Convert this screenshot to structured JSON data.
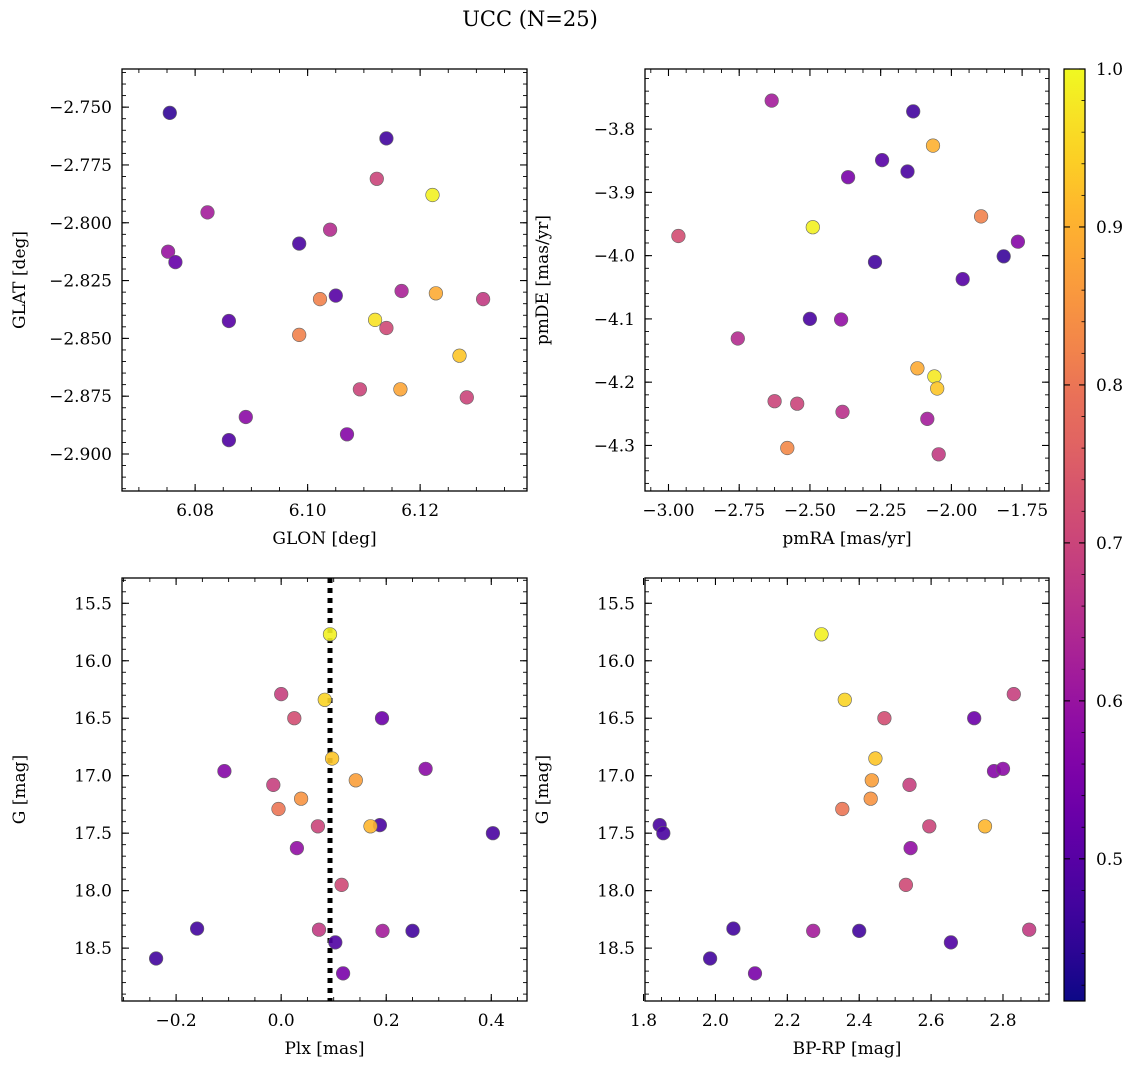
{
  "figure": {
    "title": "UCC (N=25)"
  },
  "chart_data": [
    {
      "type": "scatter",
      "panel": "top-left",
      "xlabel": "GLON [deg]",
      "ylabel": "GLAT [deg]",
      "xlim": [
        6.067,
        6.139
      ],
      "ylim": [
        -2.916,
        -2.7335
      ],
      "xticks": [
        6.08,
        6.1,
        6.12
      ],
      "xtick_labels": [
        "6.08",
        "6.10",
        "6.12"
      ],
      "yticks": [
        -2.75,
        -2.775,
        -2.8,
        -2.825,
        -2.85,
        -2.875,
        -2.9
      ],
      "ytick_labels": [
        "−2.750",
        "−2.775",
        "−2.800",
        "−2.825",
        "−2.850",
        "−2.875",
        "−2.900"
      ],
      "y_inverted": false,
      "points": [
        {
          "x": 6.0755,
          "y": -2.7525,
          "c": 0.45
        },
        {
          "x": 6.114,
          "y": -2.7635,
          "c": 0.47
        },
        {
          "x": 6.1123,
          "y": -2.781,
          "c": 0.7
        },
        {
          "x": 6.1222,
          "y": -2.788,
          "c": 0.99
        },
        {
          "x": 6.0822,
          "y": -2.7955,
          "c": 0.62
        },
        {
          "x": 6.104,
          "y": -2.803,
          "c": 0.65
        },
        {
          "x": 6.0985,
          "y": -2.809,
          "c": 0.48
        },
        {
          "x": 6.0752,
          "y": -2.8125,
          "c": 0.6
        },
        {
          "x": 6.0765,
          "y": -2.817,
          "c": 0.52
        },
        {
          "x": 6.1022,
          "y": -2.833,
          "c": 0.82
        },
        {
          "x": 6.105,
          "y": -2.8315,
          "c": 0.5
        },
        {
          "x": 6.1167,
          "y": -2.8295,
          "c": 0.63
        },
        {
          "x": 6.1228,
          "y": -2.8305,
          "c": 0.89
        },
        {
          "x": 6.1312,
          "y": -2.833,
          "c": 0.68
        },
        {
          "x": 6.086,
          "y": -2.8425,
          "c": 0.5
        },
        {
          "x": 6.112,
          "y": -2.842,
          "c": 0.97
        },
        {
          "x": 6.114,
          "y": -2.8455,
          "c": 0.71
        },
        {
          "x": 6.0985,
          "y": -2.8485,
          "c": 0.82
        },
        {
          "x": 6.127,
          "y": -2.8575,
          "c": 0.93
        },
        {
          "x": 6.1093,
          "y": -2.872,
          "c": 0.7
        },
        {
          "x": 6.1165,
          "y": -2.872,
          "c": 0.88
        },
        {
          "x": 6.1283,
          "y": -2.8755,
          "c": 0.7
        },
        {
          "x": 6.089,
          "y": -2.884,
          "c": 0.58
        },
        {
          "x": 6.086,
          "y": -2.894,
          "c": 0.49
        },
        {
          "x": 6.107,
          "y": -2.8915,
          "c": 0.57
        }
      ]
    },
    {
      "type": "scatter",
      "panel": "top-right",
      "xlabel": "pmRA [mas/yr]",
      "ylabel": "pmDE [mas/yr]",
      "xlim": [
        -3.083,
        -1.655
      ],
      "ylim": [
        -4.372,
        -3.705
      ],
      "xticks": [
        -3.0,
        -2.75,
        -2.5,
        -2.25,
        -2.0,
        -1.75
      ],
      "xtick_labels": [
        "−3.00",
        "−2.75",
        "−2.50",
        "−2.25",
        "−2.00",
        "−1.75"
      ],
      "yticks": [
        -3.8,
        -3.9,
        -4.0,
        -4.1,
        -4.2,
        -4.3
      ],
      "ytick_labels": [
        "−3.8",
        "−3.9",
        "−4.0",
        "−4.1",
        "−4.2",
        "−4.3"
      ],
      "y_inverted": false,
      "points": [
        {
          "x": -2.635,
          "y": -3.755,
          "c": 0.62
        },
        {
          "x": -2.135,
          "y": -3.772,
          "c": 0.47
        },
        {
          "x": -2.065,
          "y": -3.826,
          "c": 0.9
        },
        {
          "x": -2.245,
          "y": -3.849,
          "c": 0.5
        },
        {
          "x": -2.155,
          "y": -3.867,
          "c": 0.48
        },
        {
          "x": -2.365,
          "y": -3.876,
          "c": 0.55
        },
        {
          "x": -1.895,
          "y": -3.938,
          "c": 0.82
        },
        {
          "x": -2.49,
          "y": -3.955,
          "c": 0.99
        },
        {
          "x": -2.965,
          "y": -3.969,
          "c": 0.72
        },
        {
          "x": -1.765,
          "y": -3.978,
          "c": 0.57
        },
        {
          "x": -1.815,
          "y": -4.001,
          "c": 0.46
        },
        {
          "x": -2.27,
          "y": -4.01,
          "c": 0.47
        },
        {
          "x": -1.96,
          "y": -4.037,
          "c": 0.5
        },
        {
          "x": -2.5,
          "y": -4.1,
          "c": 0.48
        },
        {
          "x": -2.39,
          "y": -4.101,
          "c": 0.59
        },
        {
          "x": -2.755,
          "y": -4.131,
          "c": 0.65
        },
        {
          "x": -2.12,
          "y": -4.178,
          "c": 0.89
        },
        {
          "x": -2.06,
          "y": -4.191,
          "c": 0.98
        },
        {
          "x": -2.05,
          "y": -4.21,
          "c": 0.93
        },
        {
          "x": -2.625,
          "y": -4.23,
          "c": 0.7
        },
        {
          "x": -2.545,
          "y": -4.234,
          "c": 0.7
        },
        {
          "x": -2.385,
          "y": -4.247,
          "c": 0.66
        },
        {
          "x": -2.085,
          "y": -4.258,
          "c": 0.62
        },
        {
          "x": -2.58,
          "y": -4.304,
          "c": 0.83
        },
        {
          "x": -2.045,
          "y": -4.314,
          "c": 0.68
        }
      ]
    },
    {
      "type": "scatter",
      "panel": "bottom-left",
      "xlabel": "Plx [mas]",
      "ylabel": "G [mag]",
      "xlim": [
        -0.303,
        0.468
      ],
      "ylim": [
        18.96,
        15.28
      ],
      "xticks": [
        -0.2,
        0.0,
        0.2,
        0.4
      ],
      "xtick_labels": [
        "−0.2",
        "0.0",
        "0.2",
        "0.4"
      ],
      "yticks": [
        15.5,
        16.0,
        16.5,
        17.0,
        17.5,
        18.0,
        18.5
      ],
      "ytick_labels": [
        "15.5",
        "16.0",
        "16.5",
        "17.0",
        "17.5",
        "18.0",
        "18.5"
      ],
      "y_inverted": true,
      "vline": {
        "x": 0.093,
        "style": "dotted",
        "color": "#000000"
      },
      "points": [
        {
          "x": 0.093,
          "y": 15.77,
          "c": 0.99
        },
        {
          "x": 0.0,
          "y": 16.29,
          "c": 0.69
        },
        {
          "x": 0.083,
          "y": 16.34,
          "c": 0.95
        },
        {
          "x": 0.025,
          "y": 16.5,
          "c": 0.72
        },
        {
          "x": 0.192,
          "y": 16.5,
          "c": 0.53
        },
        {
          "x": 0.097,
          "y": 16.85,
          "c": 0.93
        },
        {
          "x": -0.108,
          "y": 16.96,
          "c": 0.57
        },
        {
          "x": 0.275,
          "y": 16.94,
          "c": 0.58
        },
        {
          "x": -0.015,
          "y": 17.08,
          "c": 0.69
        },
        {
          "x": 0.142,
          "y": 17.04,
          "c": 0.87
        },
        {
          "x": 0.038,
          "y": 17.2,
          "c": 0.85
        },
        {
          "x": -0.005,
          "y": 17.29,
          "c": 0.8
        },
        {
          "x": 0.07,
          "y": 17.44,
          "c": 0.7
        },
        {
          "x": 0.188,
          "y": 17.43,
          "c": 0.48
        },
        {
          "x": 0.17,
          "y": 17.44,
          "c": 0.91
        },
        {
          "x": 0.403,
          "y": 17.5,
          "c": 0.48
        },
        {
          "x": 0.03,
          "y": 17.63,
          "c": 0.59
        },
        {
          "x": 0.115,
          "y": 17.95,
          "c": 0.71
        },
        {
          "x": -0.16,
          "y": 18.33,
          "c": 0.47
        },
        {
          "x": 0.072,
          "y": 18.34,
          "c": 0.68
        },
        {
          "x": 0.193,
          "y": 18.35,
          "c": 0.62
        },
        {
          "x": 0.25,
          "y": 18.35,
          "c": 0.47
        },
        {
          "x": 0.103,
          "y": 18.45,
          "c": 0.49
        },
        {
          "x": -0.238,
          "y": 18.59,
          "c": 0.47
        },
        {
          "x": 0.118,
          "y": 18.72,
          "c": 0.55
        }
      ]
    },
    {
      "type": "scatter",
      "panel": "bottom-right",
      "xlabel": "BP-RP [mag]",
      "ylabel": "G [mag]",
      "xlim": [
        1.804,
        2.928
      ],
      "ylim": [
        18.96,
        15.28
      ],
      "xticks": [
        1.8,
        2.0,
        2.2,
        2.4,
        2.6,
        2.8
      ],
      "xtick_labels": [
        "1.8",
        "2.0",
        "2.2",
        "2.4",
        "2.6",
        "2.8"
      ],
      "yticks": [
        15.5,
        16.0,
        16.5,
        17.0,
        17.5,
        18.0,
        18.5
      ],
      "ytick_labels": [
        "15.5",
        "16.0",
        "16.5",
        "17.0",
        "17.5",
        "18.0",
        "18.5"
      ],
      "y_inverted": true,
      "points": [
        {
          "x": 2.295,
          "y": 15.77,
          "c": 0.99
        },
        {
          "x": 2.83,
          "y": 16.29,
          "c": 0.69
        },
        {
          "x": 2.36,
          "y": 16.34,
          "c": 0.95
        },
        {
          "x": 2.47,
          "y": 16.5,
          "c": 0.72
        },
        {
          "x": 2.72,
          "y": 16.5,
          "c": 0.53
        },
        {
          "x": 2.445,
          "y": 16.85,
          "c": 0.93
        },
        {
          "x": 2.775,
          "y": 16.96,
          "c": 0.57
        },
        {
          "x": 2.8,
          "y": 16.94,
          "c": 0.58
        },
        {
          "x": 2.54,
          "y": 17.08,
          "c": 0.69
        },
        {
          "x": 2.435,
          "y": 17.04,
          "c": 0.87
        },
        {
          "x": 2.432,
          "y": 17.2,
          "c": 0.85
        },
        {
          "x": 2.353,
          "y": 17.29,
          "c": 0.8
        },
        {
          "x": 2.595,
          "y": 17.44,
          "c": 0.7
        },
        {
          "x": 1.845,
          "y": 17.43,
          "c": 0.48
        },
        {
          "x": 2.75,
          "y": 17.44,
          "c": 0.91
        },
        {
          "x": 1.855,
          "y": 17.5,
          "c": 0.48
        },
        {
          "x": 2.543,
          "y": 17.63,
          "c": 0.59
        },
        {
          "x": 2.53,
          "y": 17.95,
          "c": 0.71
        },
        {
          "x": 2.05,
          "y": 18.33,
          "c": 0.47
        },
        {
          "x": 2.272,
          "y": 18.35,
          "c": 0.62
        },
        {
          "x": 2.4,
          "y": 18.35,
          "c": 0.47
        },
        {
          "x": 2.873,
          "y": 18.34,
          "c": 0.68
        },
        {
          "x": 2.655,
          "y": 18.45,
          "c": 0.49
        },
        {
          "x": 1.985,
          "y": 18.59,
          "c": 0.47
        },
        {
          "x": 2.11,
          "y": 18.72,
          "c": 0.55
        }
      ]
    }
  ],
  "colorbar": {
    "cmap": "plasma",
    "range": [
      0.41,
      1.0
    ],
    "ticks": [
      0.5,
      0.6,
      0.7,
      0.8,
      0.9,
      1.0
    ],
    "tick_labels": [
      "0.5",
      "0.6",
      "0.7",
      "0.8",
      "0.9",
      "1.0"
    ],
    "placement": "right"
  },
  "colors": {
    "cmap_stops": [
      "#0d0887",
      "#2a0593",
      "#41049d",
      "#5601a4",
      "#6a00a8",
      "#7e03a8",
      "#8f0da4",
      "#a11b9b",
      "#b12a90",
      "#bf3984",
      "#cc4778",
      "#d6556d",
      "#e16462",
      "#e97158",
      "#f2844b",
      "#f89540",
      "#fca636",
      "#feb72d",
      "#fcce25",
      "#f7e225",
      "#f0f921"
    ]
  }
}
